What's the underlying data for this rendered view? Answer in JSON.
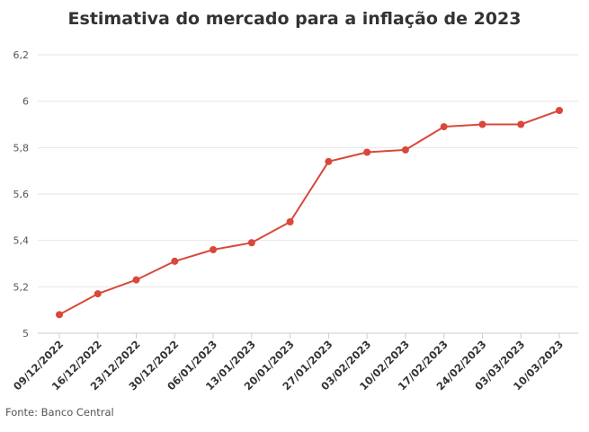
{
  "chart_data": {
    "type": "line",
    "title": "Estimativa do mercado para a inflação de 2023",
    "xlabel": "",
    "ylabel": "",
    "categories": [
      "09/12/2022",
      "16/12/2022",
      "23/12/2022",
      "30/12/2022",
      "06/01/2023",
      "13/01/2023",
      "20/01/2023",
      "27/01/2023",
      "03/02/2023",
      "10/02/2023",
      "17/02/2023",
      "24/02/2023",
      "03/03/2023",
      "10/03/2023"
    ],
    "series": [
      {
        "values": [
          5.08,
          5.17,
          5.23,
          5.31,
          5.36,
          5.39,
          5.48,
          5.74,
          5.78,
          5.79,
          5.89,
          5.9,
          5.9,
          5.96
        ]
      }
    ],
    "ylim": [
      5,
      6.2
    ],
    "yticks": [
      5,
      5.2,
      5.4,
      5.6,
      5.8,
      6,
      6.2
    ],
    "ytick_labels": [
      "5",
      "5,2",
      "5,4",
      "5,6",
      "5,8",
      "6",
      "6,2"
    ],
    "grid": true,
    "legend": "none",
    "colors": {
      "line": "#d9483b",
      "grid": "#e6e6e6",
      "axis": "#cccccc",
      "text": "#333333"
    }
  },
  "source": "Fonte: Banco Central"
}
